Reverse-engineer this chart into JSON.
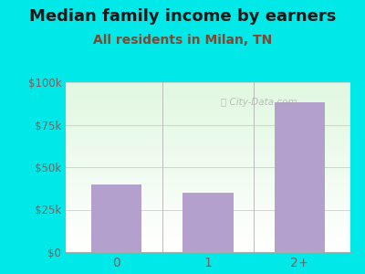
{
  "title": "Median family income by earners",
  "subtitle": "All residents in Milan, TN",
  "categories": [
    "0",
    "1",
    "2+"
  ],
  "values": [
    40000,
    35000,
    88000
  ],
  "bar_color": "#b3a0cc",
  "ylim": [
    0,
    100000
  ],
  "yticks": [
    0,
    25000,
    50000,
    75000,
    100000
  ],
  "ytick_labels": [
    "$0",
    "$25k",
    "$50k",
    "$75k",
    "$100k"
  ],
  "title_fontsize": 13,
  "subtitle_fontsize": 10,
  "title_color": "#1a1a1a",
  "subtitle_color": "#7a4a35",
  "tick_color": "#7a6060",
  "background_outer": "#00e8e8",
  "watermark": "City-Data.com",
  "fig_width": 4.0,
  "fig_height": 3.0,
  "dpi": 100
}
